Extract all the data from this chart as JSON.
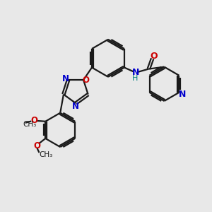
{
  "bg_color": "#e8e8e8",
  "bond_color": "#1a1a1a",
  "N_color": "#0000cc",
  "O_color": "#cc0000",
  "NH_color": "#0000cc",
  "H_color": "#008080",
  "lw": 1.6,
  "figsize": [
    3.0,
    3.0
  ],
  "dpi": 100,
  "xlim": [
    0,
    10
  ],
  "ylim": [
    0,
    10
  ]
}
